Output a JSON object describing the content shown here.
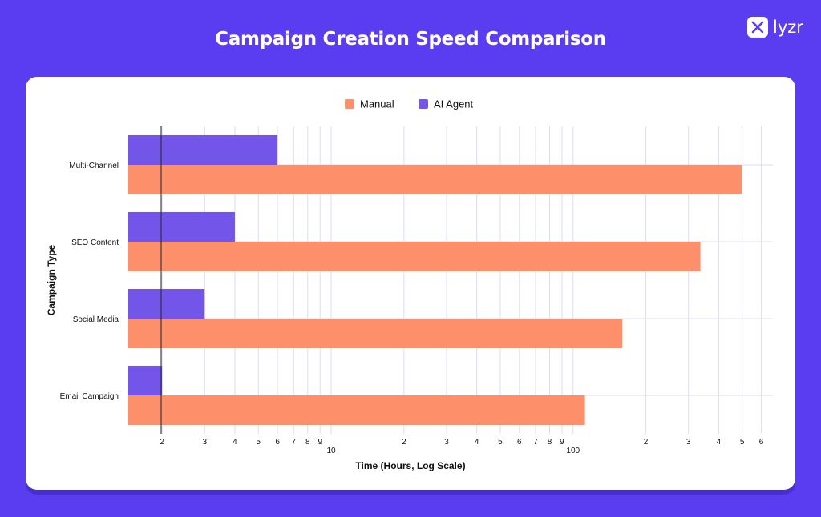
{
  "page": {
    "title": "Campaign Creation Speed Comparison"
  },
  "brand": {
    "name": "lyzr",
    "icon": "lyzr-logo-icon"
  },
  "colors": {
    "background": "#5a3df0",
    "card": "#ffffff",
    "manual": "#fe8f6b",
    "ai_agent": "#7356e9",
    "grid": "#dcdcf4"
  },
  "chart_data": {
    "type": "bar",
    "orientation": "horizontal",
    "x_scale": "log",
    "categories": [
      "Multi-Channel",
      "SEO Content",
      "Social Media",
      "Email Campaign"
    ],
    "series": [
      {
        "name": "Manual",
        "values": [
          500,
          336,
          160,
          112
        ]
      },
      {
        "name": "AI Agent",
        "values": [
          6,
          4,
          3,
          2
        ]
      }
    ],
    "xlabel": "Time (Hours, Log Scale)",
    "ylabel": "Campaign Type",
    "xlim": [
      1.45,
      670
    ],
    "x_ticks": [
      {
        "value": 2,
        "label": "2"
      },
      {
        "value": 3,
        "label": "3"
      },
      {
        "value": 4,
        "label": "4"
      },
      {
        "value": 5,
        "label": "5"
      },
      {
        "value": 6,
        "label": "6"
      },
      {
        "value": 7,
        "label": "7"
      },
      {
        "value": 8,
        "label": "8"
      },
      {
        "value": 9,
        "label": "9"
      },
      {
        "value": 10,
        "label": "10"
      },
      {
        "value": 20,
        "label": "2"
      },
      {
        "value": 30,
        "label": "3"
      },
      {
        "value": 40,
        "label": "4"
      },
      {
        "value": 50,
        "label": "5"
      },
      {
        "value": 60,
        "label": "6"
      },
      {
        "value": 70,
        "label": "7"
      },
      {
        "value": 80,
        "label": "8"
      },
      {
        "value": 90,
        "label": "9"
      },
      {
        "value": 100,
        "label": "100"
      },
      {
        "value": 200,
        "label": "2"
      },
      {
        "value": 300,
        "label": "3"
      },
      {
        "value": 400,
        "label": "4"
      },
      {
        "value": 500,
        "label": "5"
      },
      {
        "value": 600,
        "label": "6"
      }
    ],
    "legend": {
      "placement": "top-center",
      "order": [
        "Manual",
        "AI Agent"
      ]
    },
    "grid": true
  }
}
